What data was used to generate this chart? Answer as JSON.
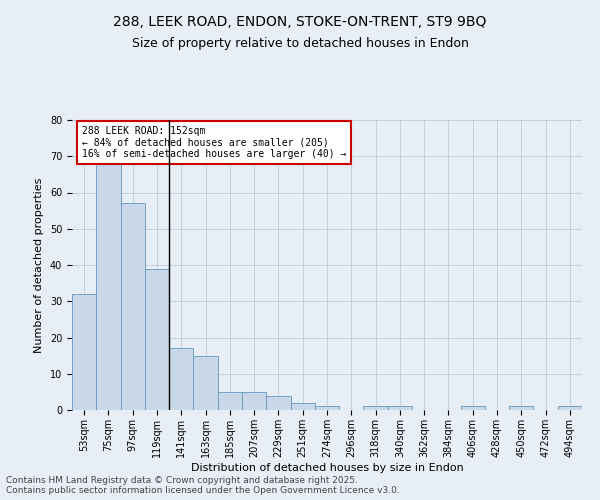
{
  "title1": "288, LEEK ROAD, ENDON, STOKE-ON-TRENT, ST9 9BQ",
  "title2": "Size of property relative to detached houses in Endon",
  "xlabel": "Distribution of detached houses by size in Endon",
  "ylabel": "Number of detached properties",
  "categories": [
    "53sqm",
    "75sqm",
    "97sqm",
    "119sqm",
    "141sqm",
    "163sqm",
    "185sqm",
    "207sqm",
    "229sqm",
    "251sqm",
    "274sqm",
    "296sqm",
    "318sqm",
    "340sqm",
    "362sqm",
    "384sqm",
    "406sqm",
    "428sqm",
    "450sqm",
    "472sqm",
    "494sqm"
  ],
  "values": [
    32,
    68,
    57,
    39,
    17,
    15,
    5,
    5,
    4,
    2,
    1,
    0,
    1,
    1,
    0,
    0,
    1,
    0,
    1,
    0,
    1
  ],
  "bar_color": "#c8d8e8",
  "bar_edge_color": "#6699bb",
  "highlight_line_color": "#000000",
  "annotation_text": "288 LEEK ROAD: 152sqm\n← 84% of detached houses are smaller (205)\n16% of semi-detached houses are larger (40) →",
  "annotation_box_color": "#ffffff",
  "annotation_box_edge": "#cc0000",
  "annotation_fontsize": 7,
  "ylim": [
    0,
    80
  ],
  "yticks": [
    0,
    10,
    20,
    30,
    40,
    50,
    60,
    70,
    80
  ],
  "grid_color": "#bbccdd",
  "bg_color": "#e8eef5",
  "footer1": "Contains HM Land Registry data © Crown copyright and database right 2025.",
  "footer2": "Contains public sector information licensed under the Open Government Licence v3.0.",
  "title_fontsize": 10,
  "title2_fontsize": 9,
  "label_fontsize": 8,
  "tick_fontsize": 7,
  "footer_fontsize": 6.5
}
